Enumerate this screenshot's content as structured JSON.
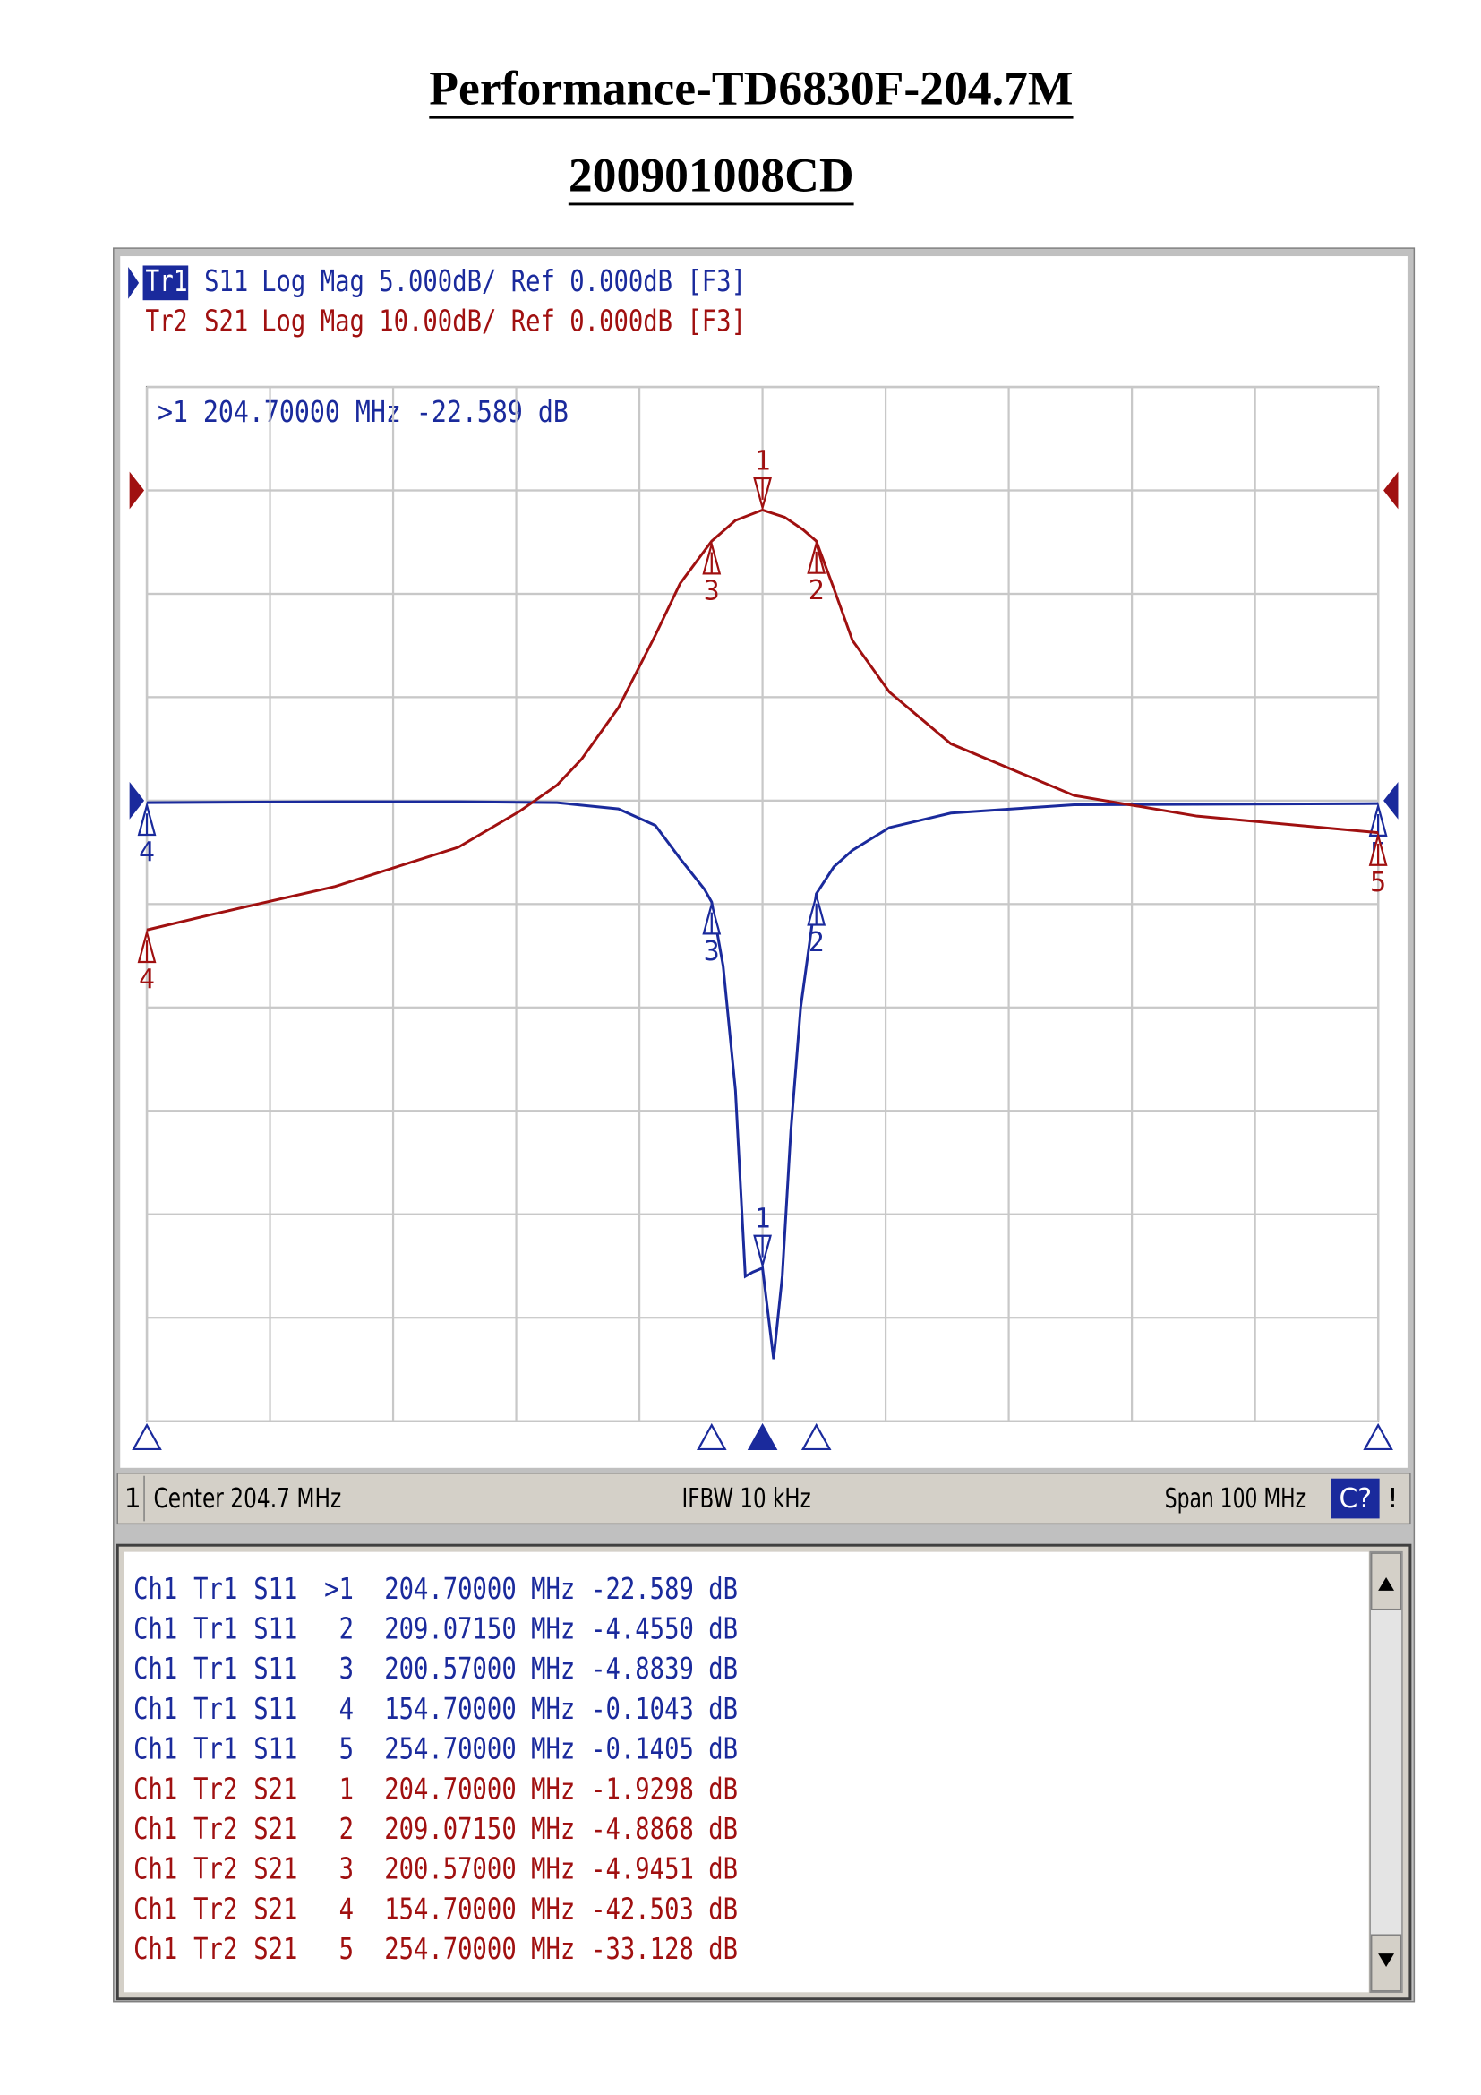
{
  "header": {
    "title": "Performance-TD6830F-204.7M",
    "subtitle": "200901008CD"
  },
  "analyzer": {
    "active_marker_readout": ">1  204.70000 MHz -22.589 dB",
    "status": {
      "channel": "1",
      "center": "Center 204.7 MHz",
      "ifbw": "IFBW 10 kHz",
      "span": "Span 100 MHz",
      "correction": "C?",
      "warning": "!"
    },
    "marker_table": {
      "rows": [
        [
          "Ch1",
          "Tr1",
          "S11",
          ">1",
          "204.70000 MHz",
          "-22.589 dB"
        ],
        [
          "Ch1",
          "Tr1",
          "S11",
          "2",
          "209.07150 MHz",
          "-4.4550 dB"
        ],
        [
          "Ch1",
          "Tr1",
          "S11",
          "3",
          "200.57000 MHz",
          "-4.8839 dB"
        ],
        [
          "Ch1",
          "Tr1",
          "S11",
          "4",
          "154.70000 MHz",
          "-0.1043 dB"
        ],
        [
          "Ch1",
          "Tr1",
          "S11",
          "5",
          "254.70000 MHz",
          "-0.1405 dB"
        ],
        [
          "Ch1",
          "Tr2",
          "S21",
          "1",
          "204.70000 MHz",
          "-1.9298 dB"
        ],
        [
          "Ch1",
          "Tr2",
          "S21",
          "2",
          "209.07150 MHz",
          "-4.8868 dB"
        ],
        [
          "Ch1",
          "Tr2",
          "S21",
          "3",
          "200.57000 MHz",
          "-4.9451 dB"
        ],
        [
          "Ch1",
          "Tr2",
          "S21",
          "4",
          "154.70000 MHz",
          "-42.503 dB"
        ],
        [
          "Ch1",
          "Tr2",
          "S21",
          "5",
          "254.70000 MHz",
          "-33.128 dB"
        ]
      ]
    }
  },
  "chart_data": {
    "type": "line",
    "xlim": [
      154.7,
      254.7
    ],
    "xticks": [
      154.7,
      164.7,
      174.7,
      184.7,
      194.7,
      204.7,
      214.7,
      224.7,
      234.7,
      244.7,
      254.7
    ],
    "ylim": [
      -30,
      20
    ],
    "yticks": [
      -30,
      -25,
      -20,
      -15,
      -10,
      -5,
      0,
      5,
      10,
      15,
      20
    ],
    "y2lim": [
      -90,
      10
    ],
    "y2ticks": [
      -90,
      -80,
      -70,
      -60,
      -50,
      -40,
      -30,
      -20,
      -10,
      0,
      10
    ],
    "grid": true,
    "series": [
      {
        "name": "S11",
        "trace": "Tr1",
        "format": "Log Mag 5.000dB/ Ref 0.000dB [F3]",
        "ref_level": 0,
        "active": true,
        "color": "#1a2a9c",
        "x": [
          154.7,
          170,
          180,
          188,
          193,
          196,
          198,
          200,
          200.57,
          201.5,
          202.5,
          203.3,
          203.9,
          204.7,
          205.6,
          206.3,
          207,
          207.8,
          209.07,
          210.5,
          212,
          215,
          220,
          230,
          254.7
        ],
        "values": [
          -0.1,
          -0.05,
          -0.05,
          -0.1,
          -0.4,
          -1.2,
          -2.8,
          -4.3,
          -4.9,
          -8,
          -14,
          -23,
          -22.8,
          -22.6,
          -27,
          -23,
          -16,
          -10,
          -4.5,
          -3.2,
          -2.4,
          -1.3,
          -0.6,
          -0.2,
          -0.14
        ],
        "markers": [
          {
            "label": "1",
            "x": 204.7,
            "value": -22.589
          },
          {
            "label": "2",
            "x": 209.0715,
            "value": -4.455
          },
          {
            "label": "3",
            "x": 200.57,
            "value": -4.8839
          },
          {
            "label": "4",
            "x": 154.7,
            "value": -0.1043
          },
          {
            "label": "5",
            "x": 254.7,
            "value": -0.1405
          }
        ]
      },
      {
        "name": "S21",
        "trace": "Tr2",
        "format": "Log Mag 10.00dB/ Ref 0.000dB [F3]",
        "ref_level": 0,
        "active": false,
        "color": "#a01010",
        "axis": "y2",
        "x": [
          154.7,
          160,
          170,
          180,
          185,
          188,
          190,
          193,
          196,
          198,
          200.57,
          202.5,
          204.7,
          206.5,
          208,
          209.07,
          210.5,
          212,
          215,
          220,
          230,
          240,
          254.7
        ],
        "values": [
          -42.5,
          -41,
          -38.3,
          -34.5,
          -31,
          -28.5,
          -26,
          -21,
          -14,
          -9,
          -4.9,
          -2.9,
          -1.9,
          -2.6,
          -3.8,
          -4.9,
          -9.5,
          -14.5,
          -19.5,
          -24.5,
          -29.5,
          -31.5,
          -33.1
        ],
        "markers": [
          {
            "label": "1",
            "x": 204.7,
            "value": -1.9298
          },
          {
            "label": "2",
            "x": 209.0715,
            "value": -4.8868
          },
          {
            "label": "3",
            "x": 200.57,
            "value": -4.9451
          },
          {
            "label": "4",
            "x": 154.7,
            "value": -42.503
          },
          {
            "label": "5",
            "x": 254.7,
            "value": -33.128
          }
        ]
      }
    ]
  }
}
